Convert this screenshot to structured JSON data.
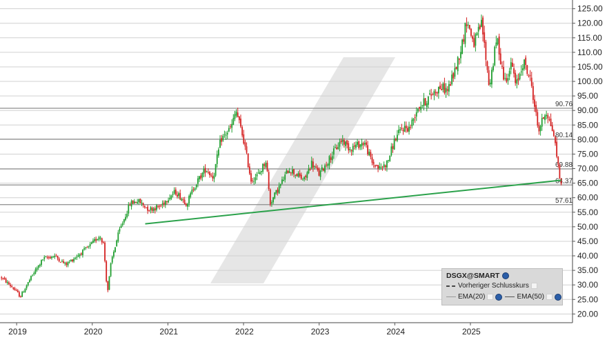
{
  "chart_data": {
    "type": "candlestick",
    "symbol": "DSGX@SMART",
    "x_ticks": [
      "2019",
      "2020",
      "2021",
      "2022",
      "2023",
      "2024",
      "2025"
    ],
    "y_ticks": [
      "125.00",
      "120.00",
      "115.00",
      "110.00",
      "105.00",
      "100.00",
      "95.00",
      "90.00",
      "85.00",
      "80.00",
      "75.00",
      "70.00",
      "65.00",
      "60.00",
      "55.00",
      "50.00",
      "45.00",
      "40.00",
      "35.00",
      "30.00",
      "25.00",
      "20.00"
    ],
    "ylim": [
      17,
      128
    ],
    "xlim": [
      2018.78,
      2026.35
    ],
    "horizontal_levels": [
      90.76,
      80.14,
      69.88,
      64.37,
      57.61
    ],
    "level_labels": [
      "90.76",
      "80.14",
      "69.88",
      "64.37",
      "57.61"
    ],
    "trendline": {
      "x": [
        2020.7,
        2026.2
      ],
      "y": [
        51.0,
        66.0
      ]
    },
    "price_path": {
      "x": [
        2018.78,
        2018.95,
        2019.05,
        2019.2,
        2019.35,
        2019.5,
        2019.65,
        2019.8,
        2019.95,
        2020.1,
        2020.15,
        2020.2,
        2020.25,
        2020.35,
        2020.5,
        2020.6,
        2020.75,
        2020.9,
        2021.0,
        2021.1,
        2021.25,
        2021.35,
        2021.5,
        2021.6,
        2021.7,
        2021.8,
        2021.85,
        2021.9,
        2022.0,
        2022.1,
        2022.2,
        2022.3,
        2022.35,
        2022.5,
        2022.6,
        2022.7,
        2022.8,
        2022.9,
        2023.0,
        2023.1,
        2023.2,
        2023.3,
        2023.4,
        2023.5,
        2023.6,
        2023.7,
        2023.8,
        2023.9,
        2024.0,
        2024.1,
        2024.2,
        2024.3,
        2024.4,
        2024.5,
        2024.6,
        2024.7,
        2024.8,
        2024.9,
        2024.95,
        2025.05,
        2025.15,
        2025.25,
        2025.35,
        2025.45,
        2025.55,
        2025.6,
        2025.7,
        2025.8,
        2025.9,
        2026.0,
        2026.1,
        2026.2
      ],
      "y": [
        33,
        29,
        26,
        33,
        39,
        40,
        37,
        40,
        43,
        47,
        44,
        27,
        38,
        48,
        58,
        59,
        56,
        57,
        60,
        62,
        58,
        64,
        70,
        67,
        80,
        83,
        85,
        90,
        80,
        66,
        68,
        73,
        58,
        65,
        70,
        68,
        66,
        72,
        68,
        72,
        76,
        80,
        77,
        78,
        79,
        72,
        70,
        72,
        80,
        84,
        84,
        91,
        93,
        96,
        98,
        97,
        104,
        114,
        121,
        113,
        120,
        98,
        115,
        100,
        106,
        98,
        107,
        100,
        83,
        90,
        82,
        64
      ]
    },
    "legend": {
      "prev_close": "Vorheriger Schlusskurs",
      "ema20": "EMA(20)",
      "ema50": "EMA(50)"
    },
    "colors": {
      "up": "#1f9e2f",
      "down": "#d42020",
      "trendline": "#2aa14a",
      "level_line": "#8c8c8c",
      "watermark": "#e6e6e6",
      "grid": "#d0d0d0"
    },
    "candle_count": 380
  }
}
